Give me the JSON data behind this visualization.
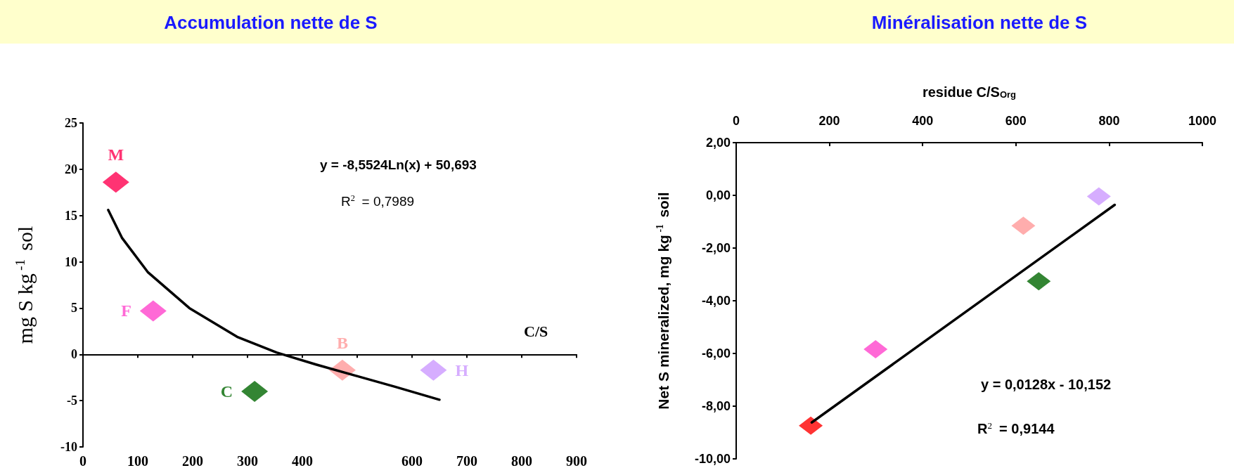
{
  "chart_data": [
    {
      "type": "scatter",
      "title": "Accumulation nette de S",
      "xlabel": "C/S",
      "ylabel": "mg S kg$^{-1}$ sol",
      "xlim": [
        0,
        900
      ],
      "xticks": [
        0,
        100,
        200,
        300,
        400,
        {
          "value": 500,
          "label": null
        },
        600,
        700,
        800,
        900
      ],
      "ylim": [
        -10,
        25
      ],
      "yticks": [
        -10,
        -5,
        0,
        5,
        10,
        15,
        20,
        25
      ],
      "legend": false,
      "marker": "diamond",
      "annotations": [
        "y = -8,5524Ln(x) + 50,693",
        "R$^{2}$ = 0,7989"
      ],
      "series": [
        {
          "name": "M",
          "color": "#ff0050",
          "x": [
            60
          ],
          "values": [
            18.6
          ]
        },
        {
          "name": "F",
          "color": "#ff44cc",
          "x": [
            128
          ],
          "values": [
            4.7
          ]
        },
        {
          "name": "C",
          "color": "#006600",
          "x": [
            313
          ],
          "values": [
            -4.0
          ]
        },
        {
          "name": "B",
          "color": "#ff9999",
          "x": [
            473
          ],
          "values": [
            -1.7
          ]
        },
        {
          "name": "H",
          "color": "#cc99ff",
          "x": [
            639
          ],
          "values": [
            -1.7
          ]
        },
        {
          "type": "line",
          "color": "#000000",
          "marker": "none",
          "line_style": "solid",
          "x": [
            46,
            71,
            118,
            194,
            281,
            353,
            425,
            497,
            569,
            650
          ],
          "values": [
            15.6,
            12.6,
            8.9,
            5.0,
            1.9,
            0.2,
            -1.1,
            -2.3,
            -3.5,
            -4.9
          ]
        }
      ]
    },
    {
      "type": "scatter",
      "title": "Minéralisation nette de S",
      "xlabel": "residue C/S$_{Org}$",
      "ylabel": "Net S mineralized, mg kg$^{-1}$ soil",
      "xlim": [
        0,
        1000
      ],
      "xticks": [
        0,
        200,
        400,
        600,
        800,
        1000
      ],
      "ylim": [
        -10,
        2
      ],
      "yticks": [
        {
          "value": -10,
          "label": "-10,00"
        },
        {
          "value": -8,
          "label": "-8,00"
        },
        {
          "value": -6,
          "label": "-6,00"
        },
        {
          "value": -4,
          "label": "-4,00"
        },
        {
          "value": -2,
          "label": "-2,00"
        },
        {
          "value": 0,
          "label": "0,00"
        },
        {
          "value": 2,
          "label": "2,00"
        }
      ],
      "grid": false,
      "legend": false,
      "marker": "diamond",
      "annotations": [
        "y = 0,0128x - 10,152",
        "R$^{2}$ = 0,9144"
      ],
      "series": [
        {
          "colors": [
            "#ff0000",
            "#ff44cc",
            "#ff9999",
            "#006600",
            "#cc99ff"
          ],
          "x": [
            160,
            299,
            616,
            649,
            778
          ],
          "values": [
            -8.74,
            -5.84,
            -1.15,
            -3.26,
            -0.04
          ]
        },
        {
          "type": "line",
          "color": "#000000",
          "marker": "none",
          "line_style": "solid",
          "x": [
            162,
            812
          ],
          "values": [
            -8.62,
            -0.36
          ]
        }
      ]
    }
  ]
}
